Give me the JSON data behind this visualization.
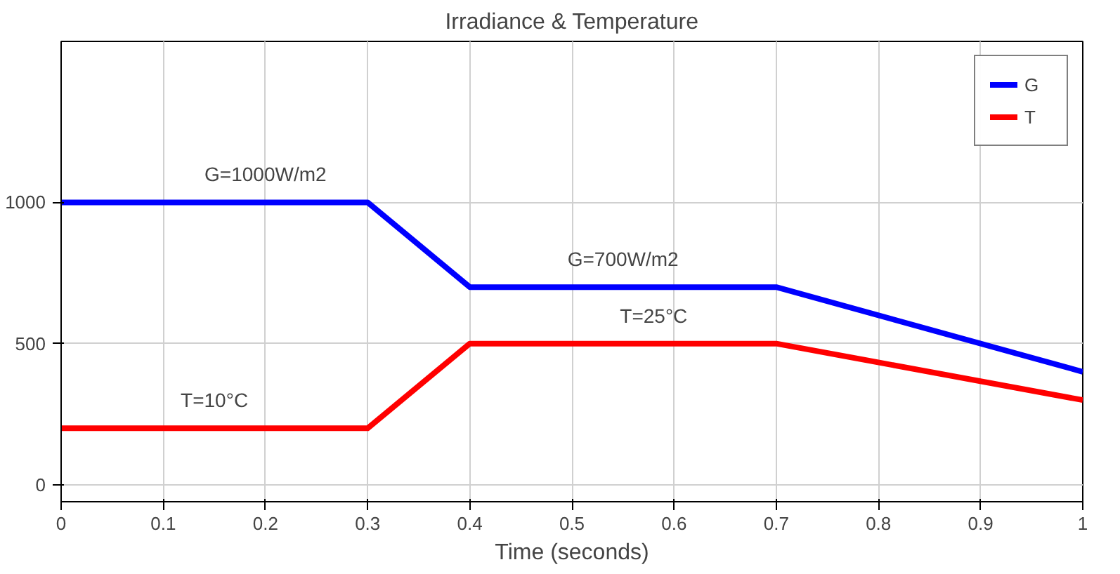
{
  "chart_data": {
    "type": "line",
    "title": "Irradiance & Temperature",
    "xlabel": "Time (seconds)",
    "x": [
      0,
      0.3,
      0.4,
      0.7,
      1
    ],
    "series": [
      {
        "name": "G",
        "color": "#0000ff",
        "values": [
          1000,
          1000,
          700,
          700,
          400
        ]
      },
      {
        "name": "T",
        "color": "#ff0000",
        "values": [
          200,
          200,
          500,
          500,
          300
        ]
      }
    ],
    "xlim": [
      0,
      1
    ],
    "ylim": [
      -60,
      1570
    ],
    "xticks": [
      0,
      0.1,
      0.2,
      0.3,
      0.4,
      0.5,
      0.6,
      0.7,
      0.8,
      0.9,
      1
    ],
    "yticks": [
      0,
      500,
      1000
    ],
    "grid": true,
    "legend": "top right",
    "line_style": "solid",
    "annotations": [
      {
        "text": "G=1000W/m2",
        "x": 0.2,
        "y": 1000
      },
      {
        "text": "G=700W/m2",
        "x": 0.55,
        "y": 700
      },
      {
        "text": "T=10°C",
        "x": 0.15,
        "y": 200
      },
      {
        "text": "T=25°C",
        "x": 0.58,
        "y": 500
      }
    ]
  }
}
